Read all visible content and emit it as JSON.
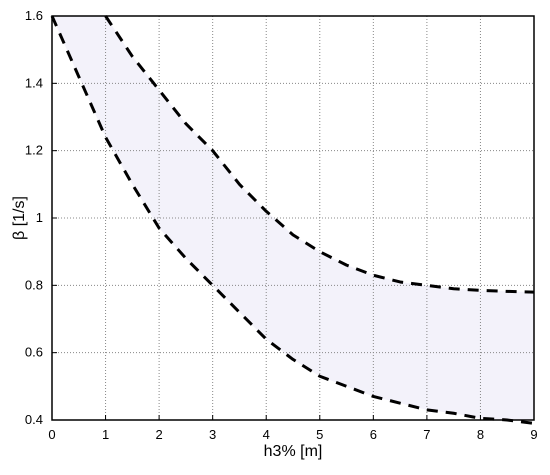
{
  "chart_data": {
    "type": "line",
    "title": "",
    "xlabel": "h3% [m]",
    "ylabel": "β  [1/s]",
    "xlim": [
      0,
      9
    ],
    "ylim": [
      0.4,
      1.6
    ],
    "x_ticks": [
      "0",
      "1",
      "2",
      "3",
      "4",
      "5",
      "6",
      "7",
      "8",
      "9"
    ],
    "y_ticks": [
      "0.4",
      "0.6",
      "0.8",
      "1",
      "1.2",
      "1.4",
      "1.6"
    ],
    "grid": true,
    "fill_between_series": true,
    "colors": {
      "line": "#000000",
      "fill": "#f3f2fa",
      "grid": "#888888"
    },
    "series": [
      {
        "line_style": "dashed",
        "x": [
          1.0,
          1.5,
          2.0,
          2.5,
          3.0,
          3.5,
          4.0,
          4.5,
          5.0,
          5.5,
          6.0,
          6.5,
          7.0,
          7.5,
          8.0,
          8.5,
          9.0
        ],
        "y": [
          1.6,
          1.48,
          1.38,
          1.28,
          1.2,
          1.1,
          1.02,
          0.95,
          0.9,
          0.86,
          0.83,
          0.81,
          0.8,
          0.79,
          0.785,
          0.782,
          0.78
        ]
      },
      {
        "line_style": "dashed",
        "x": [
          0.0,
          0.5,
          1.0,
          1.5,
          2.0,
          2.5,
          3.0,
          3.5,
          4.0,
          4.5,
          5.0,
          5.5,
          6.0,
          6.5,
          7.0,
          7.5,
          8.0,
          8.5,
          9.0
        ],
        "y": [
          1.6,
          1.42,
          1.24,
          1.1,
          0.97,
          0.88,
          0.8,
          0.72,
          0.64,
          0.58,
          0.53,
          0.5,
          0.47,
          0.45,
          0.43,
          0.42,
          0.405,
          0.4,
          0.39
        ]
      }
    ]
  }
}
